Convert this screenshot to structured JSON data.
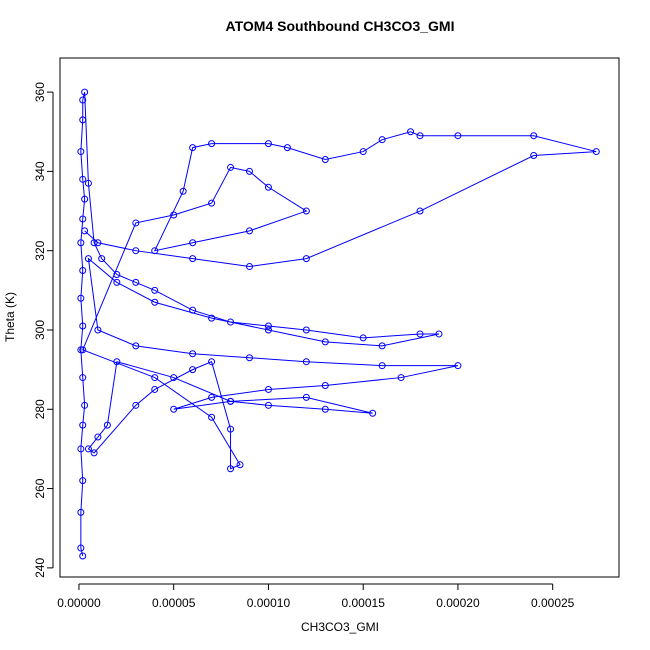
{
  "chart_data": {
    "type": "line",
    "title": "ATOM4 Southbound CH3CO3_GMI",
    "x_label": "CH3CO3_GMI",
    "y_label": "Theta (K)",
    "x": [
      2e-06,
      1e-06,
      1e-06,
      2e-06,
      1e-06,
      2e-06,
      3e-06,
      2e-06,
      1e-06,
      2e-06,
      1e-06,
      2e-06,
      1e-06,
      2e-06,
      3e-06,
      2e-06,
      1e-06,
      2e-06,
      2e-06,
      3e-06,
      5e-06,
      8e-06,
      1.2e-05,
      2e-05,
      3e-05,
      4e-05,
      6e-05,
      8e-05,
      0.0001,
      0.00012,
      0.00015,
      0.00018,
      0.00019,
      0.00016,
      0.00013,
      0.0001,
      7e-05,
      4e-05,
      2e-05,
      5e-06,
      1e-05,
      3e-05,
      6e-05,
      9e-05,
      0.00012,
      0.00016,
      0.0002,
      0.00017,
      0.00013,
      0.0001,
      7e-05,
      5e-05,
      8e-05,
      0.0001,
      0.00013,
      0.000155,
      0.00012,
      8e-05,
      5e-05,
      2e-05,
      1.5e-05,
      1e-05,
      5e-06,
      8e-06,
      3e-05,
      4e-05,
      6e-05,
      7e-05,
      8e-05,
      8e-05,
      8.5e-05,
      7e-05,
      4e-05,
      2e-06,
      3e-05,
      5e-05,
      7e-05,
      8e-05,
      9e-05,
      0.0001,
      0.00012,
      9e-05,
      6e-05,
      4e-05,
      5.5e-05,
      6e-05,
      7e-05,
      0.0001,
      0.00011,
      0.00013,
      0.00015,
      0.00016,
      0.000175,
      0.00018,
      0.0002,
      0.00024,
      0.000273,
      0.00024,
      0.00018,
      0.00012,
      9e-05,
      6e-05,
      3e-05,
      1e-05,
      3e-06
    ],
    "series": [
      {
        "name": "Theta",
        "color": "#0000ff",
        "values": [
          243,
          245,
          254,
          262,
          270,
          276,
          281,
          288,
          295,
          301,
          308,
          315,
          322,
          328,
          333,
          338,
          345,
          353,
          358,
          360,
          337,
          322,
          318,
          314,
          312,
          310,
          305,
          302,
          301,
          300,
          298,
          299,
          299,
          296,
          297,
          300,
          303,
          307,
          312,
          318,
          300,
          296,
          294,
          293,
          292,
          291,
          291,
          288,
          286,
          285,
          283,
          280,
          282,
          281,
          280,
          279,
          283,
          282,
          288,
          292,
          276,
          273,
          270,
          269,
          281,
          285,
          290,
          292,
          275,
          265,
          266,
          278,
          288,
          295,
          327,
          329,
          332,
          341,
          340,
          336,
          330,
          325,
          322,
          320,
          335,
          346,
          347,
          347,
          346,
          343,
          345,
          348,
          350,
          349,
          349,
          349,
          345,
          344,
          330,
          318,
          316,
          318,
          320,
          322,
          325
        ]
      }
    ],
    "xlim": [
      -1e-05,
      0.000285
    ],
    "ylim": [
      237.7,
      368.6
    ],
    "xticks": [
      {
        "value": 0,
        "label": "0.00000"
      },
      {
        "value": 5e-05,
        "label": "0.00005"
      },
      {
        "value": 0.0001,
        "label": "0.00010"
      },
      {
        "value": 0.00015,
        "label": "0.00015"
      },
      {
        "value": 0.0002,
        "label": "0.00020"
      },
      {
        "value": 0.00025,
        "label": "0.00025"
      }
    ],
    "yticks": [
      240,
      260,
      280,
      300,
      320,
      340,
      360
    ]
  }
}
